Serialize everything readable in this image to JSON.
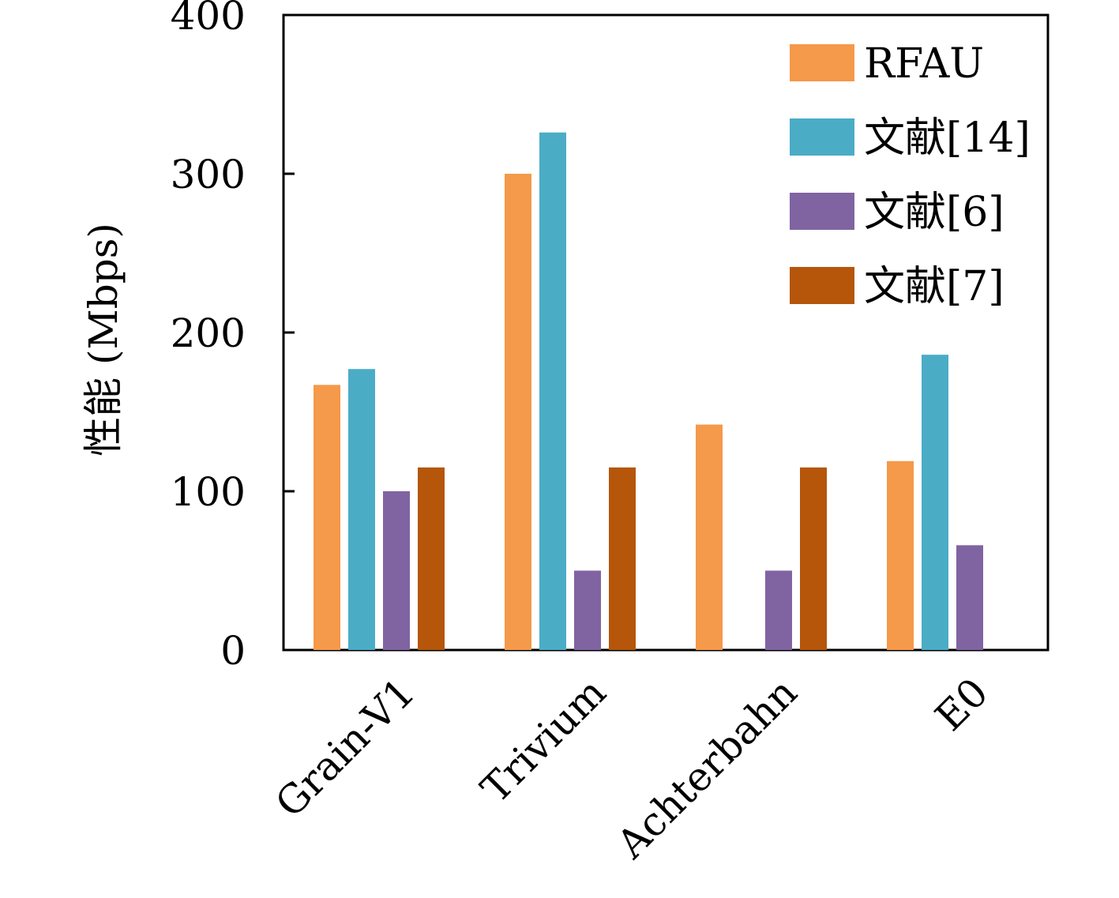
{
  "chart_data": {
    "type": "bar",
    "title": "",
    "xlabel": "",
    "ylabel": "性能 (Mbps)",
    "ylim": [
      0,
      400
    ],
    "yticks": [
      "0",
      "100",
      "200",
      "300",
      "400"
    ],
    "categories": [
      "Grain-V1",
      "Trivium",
      "Achterbahn",
      "E0"
    ],
    "series": [
      {
        "name": "RFAU",
        "color": "#F5994A",
        "values": [
          167,
          300,
          142,
          119
        ]
      },
      {
        "name": "文献[14]",
        "color": "#4BACC6",
        "values": [
          177,
          326,
          null,
          186
        ]
      },
      {
        "name": "文献[6]",
        "color": "#8064A2",
        "values": [
          100,
          50,
          50,
          66
        ]
      },
      {
        "name": "文献[7]",
        "color": "#B5560A",
        "values": [
          115,
          115,
          115,
          null
        ]
      }
    ],
    "grid": false,
    "legend_position": "top-right",
    "x_label_rotation": "45 degrees"
  }
}
